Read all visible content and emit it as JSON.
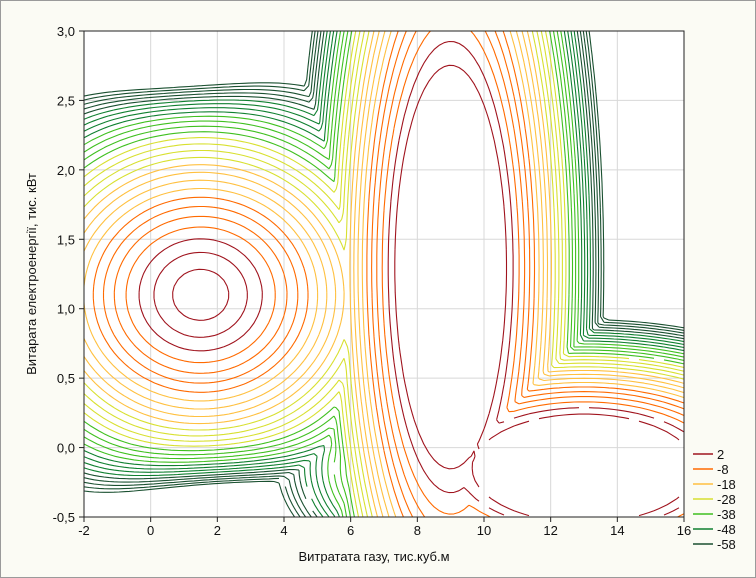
{
  "chart_data": {
    "type": "contour",
    "xlabel": "Витратата газу, тис.куб.м",
    "ylabel": "Витарата електроенергії, тис. кВт",
    "xlim": [
      -2,
      16
    ],
    "ylim": [
      -0.5,
      3.0
    ],
    "x_ticks": [
      -2,
      0,
      2,
      4,
      6,
      8,
      10,
      12,
      14,
      16
    ],
    "y_ticks": [
      -0.5,
      0.0,
      0.5,
      1.0,
      1.5,
      2.0,
      2.5,
      3.0
    ],
    "x_tick_labels": [
      "-2",
      "0",
      "2",
      "4",
      "6",
      "8",
      "10",
      "12",
      "14",
      "16"
    ],
    "y_tick_labels": [
      "-0,5",
      "0,0",
      "0,5",
      "1,0",
      "1,5",
      "2,0",
      "2,5",
      "3,0"
    ],
    "grid": true,
    "legend_position": "bottom-right",
    "legend": [
      {
        "label": "2",
        "value": 2,
        "color": "#a0141e"
      },
      {
        "label": "-8",
        "value": -8,
        "color": "#ff6a00"
      },
      {
        "label": "-18",
        "value": -18,
        "color": "#ffc040"
      },
      {
        "label": "-28",
        "value": -28,
        "color": "#d8e030"
      },
      {
        "label": "-38",
        "value": -38,
        "color": "#40c020"
      },
      {
        "label": "-48",
        "value": -48,
        "color": "#108030"
      },
      {
        "label": "-58",
        "value": -58,
        "color": "#1a5030"
      }
    ],
    "max_point": {
      "x": 1.5,
      "y": 1.1
    },
    "plateau_regions": [
      {
        "name": "central-plateau",
        "x_range": [
          7.5,
          10.5
        ],
        "y_range": [
          0.0,
          2.6
        ]
      },
      {
        "name": "lower-right-plateau",
        "x_range": [
          10.0,
          16.0
        ],
        "y_range": [
          -0.5,
          0.2
        ]
      }
    ]
  }
}
